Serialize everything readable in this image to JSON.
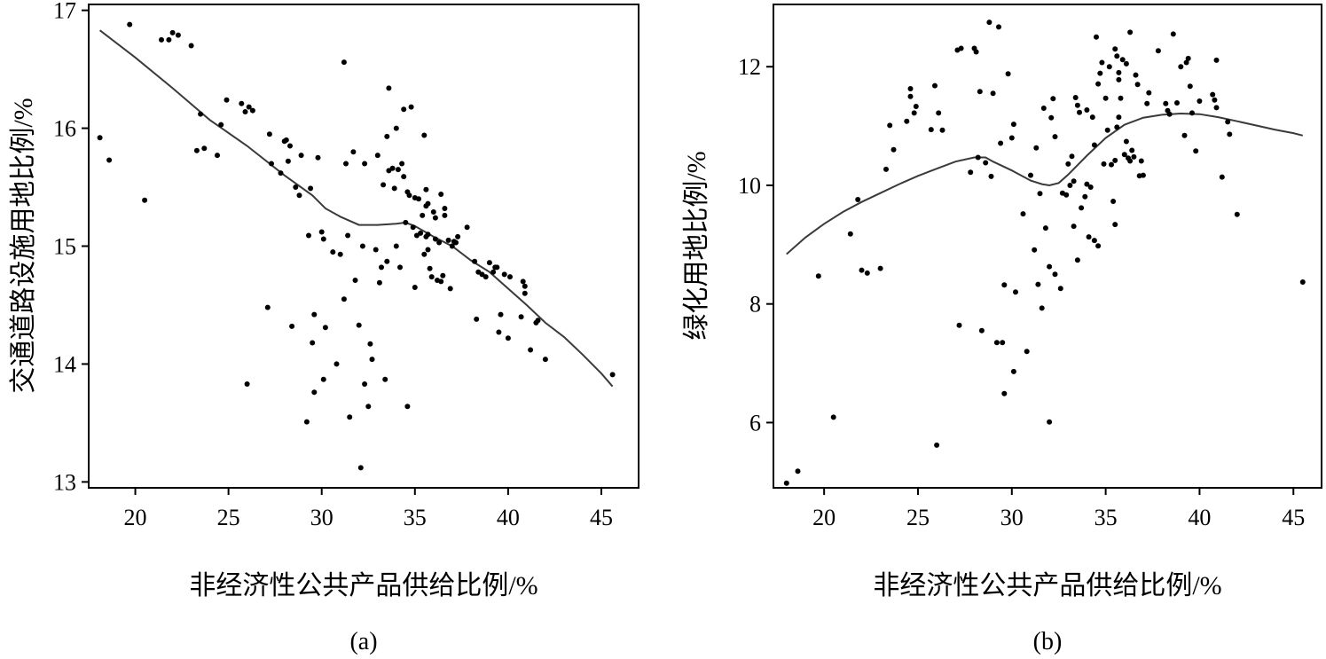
{
  "chart_data": [
    {
      "type": "scatter",
      "panel_label": "(a)",
      "xlabel": "非经济性公共产品供给比例/%",
      "ylabel": "交通道路设施用地比例/%",
      "xlim": [
        17.5,
        47
      ],
      "ylim": [
        12.95,
        17.05
      ],
      "xticks": [
        20,
        25,
        30,
        35,
        40,
        45
      ],
      "yticks": [
        13,
        14,
        15,
        16,
        17
      ],
      "grid": false,
      "legend": "none",
      "points": [
        [
          18.1,
          15.92
        ],
        [
          18.6,
          15.73
        ],
        [
          19.7,
          16.88
        ],
        [
          20.5,
          15.39
        ],
        [
          21.4,
          16.75
        ],
        [
          21.8,
          16.75
        ],
        [
          22.0,
          16.81
        ],
        [
          22.3,
          16.79
        ],
        [
          23.0,
          16.7
        ],
        [
          23.3,
          15.81
        ],
        [
          23.5,
          16.12
        ],
        [
          23.7,
          15.83
        ],
        [
          24.4,
          15.77
        ],
        [
          24.6,
          16.03
        ],
        [
          24.9,
          16.24
        ],
        [
          25.7,
          16.21
        ],
        [
          25.9,
          16.14
        ],
        [
          26.1,
          16.18
        ],
        [
          26.3,
          16.15
        ],
        [
          26.0,
          13.83
        ],
        [
          27.1,
          14.48
        ],
        [
          27.2,
          15.95
        ],
        [
          27.3,
          15.7
        ],
        [
          27.8,
          15.62
        ],
        [
          28.0,
          15.89
        ],
        [
          28.1,
          15.9
        ],
        [
          28.2,
          15.72
        ],
        [
          28.3,
          15.85
        ],
        [
          28.4,
          14.32
        ],
        [
          28.6,
          15.5
        ],
        [
          28.9,
          15.77
        ],
        [
          28.8,
          15.43
        ],
        [
          29.2,
          13.51
        ],
        [
          29.3,
          15.09
        ],
        [
          29.4,
          15.49
        ],
        [
          29.5,
          14.18
        ],
        [
          29.6,
          14.42
        ],
        [
          29.6,
          13.76
        ],
        [
          29.8,
          15.75
        ],
        [
          30.0,
          15.12
        ],
        [
          30.1,
          15.06
        ],
        [
          30.1,
          13.87
        ],
        [
          30.2,
          14.31
        ],
        [
          30.6,
          14.95
        ],
        [
          30.8,
          14.0
        ],
        [
          31.0,
          14.93
        ],
        [
          31.2,
          14.55
        ],
        [
          31.2,
          16.56
        ],
        [
          31.3,
          15.7
        ],
        [
          31.4,
          15.09
        ],
        [
          31.5,
          13.55
        ],
        [
          31.7,
          15.8
        ],
        [
          31.8,
          14.71
        ],
        [
          32.0,
          14.33
        ],
        [
          32.1,
          13.12
        ],
        [
          32.2,
          15.0
        ],
        [
          32.3,
          15.7
        ],
        [
          32.3,
          13.83
        ],
        [
          32.5,
          13.64
        ],
        [
          32.6,
          14.17
        ],
        [
          32.7,
          14.04
        ],
        [
          32.9,
          14.97
        ],
        [
          33.0,
          15.77
        ],
        [
          33.1,
          14.69
        ],
        [
          33.2,
          14.82
        ],
        [
          33.3,
          15.52
        ],
        [
          33.4,
          13.87
        ],
        [
          33.5,
          14.87
        ],
        [
          33.5,
          15.93
        ],
        [
          33.6,
          16.34
        ],
        [
          33.6,
          15.64
        ],
        [
          33.8,
          15.66
        ],
        [
          33.9,
          15.49
        ],
        [
          34.0,
          15.0
        ],
        [
          34.0,
          16.0
        ],
        [
          34.1,
          15.65
        ],
        [
          34.2,
          14.82
        ],
        [
          34.3,
          15.7
        ],
        [
          34.4,
          16.16
        ],
        [
          34.4,
          15.59
        ],
        [
          34.5,
          15.2
        ],
        [
          34.6,
          13.64
        ],
        [
          34.6,
          15.46
        ],
        [
          34.7,
          15.43
        ],
        [
          34.8,
          16.18
        ],
        [
          34.9,
          15.16
        ],
        [
          35.0,
          14.65
        ],
        [
          35.0,
          15.41
        ],
        [
          35.1,
          15.09
        ],
        [
          35.2,
          15.4
        ],
        [
          35.3,
          15.11
        ],
        [
          35.4,
          15.26
        ],
        [
          35.5,
          14.93
        ],
        [
          35.5,
          15.94
        ],
        [
          35.6,
          15.08
        ],
        [
          35.6,
          15.34
        ],
        [
          35.6,
          15.48
        ],
        [
          35.7,
          15.36
        ],
        [
          35.7,
          14.97
        ],
        [
          35.7,
          15.1
        ],
        [
          35.8,
          14.81
        ],
        [
          35.9,
          14.74
        ],
        [
          36.0,
          15.29
        ],
        [
          36.1,
          15.06
        ],
        [
          36.1,
          15.24
        ],
        [
          36.2,
          14.71
        ],
        [
          36.3,
          15.03
        ],
        [
          36.4,
          15.44
        ],
        [
          36.4,
          14.7
        ],
        [
          36.5,
          14.75
        ],
        [
          36.6,
          15.32
        ],
        [
          36.6,
          15.26
        ],
        [
          36.8,
          15.05
        ],
        [
          36.9,
          14.64
        ],
        [
          37.0,
          15.0
        ],
        [
          37.1,
          15.04
        ],
        [
          37.2,
          15.03
        ],
        [
          37.3,
          15.08
        ],
        [
          37.8,
          15.16
        ],
        [
          38.2,
          14.87
        ],
        [
          38.3,
          14.38
        ],
        [
          38.4,
          14.78
        ],
        [
          38.6,
          14.76
        ],
        [
          38.8,
          14.74
        ],
        [
          39.0,
          14.86
        ],
        [
          39.2,
          14.78
        ],
        [
          39.3,
          14.82
        ],
        [
          39.4,
          14.82
        ],
        [
          39.5,
          14.27
        ],
        [
          39.6,
          14.42
        ],
        [
          39.8,
          14.76
        ],
        [
          40.0,
          14.22
        ],
        [
          40.1,
          14.74
        ],
        [
          40.7,
          14.4
        ],
        [
          40.8,
          14.7
        ],
        [
          40.9,
          14.66
        ],
        [
          40.9,
          14.6
        ],
        [
          41.2,
          14.12
        ],
        [
          41.5,
          14.35
        ],
        [
          41.6,
          14.37
        ],
        [
          42.0,
          14.04
        ],
        [
          45.6,
          13.91
        ]
      ],
      "fit_line": [
        [
          18.1,
          16.83
        ],
        [
          20,
          16.6
        ],
        [
          22,
          16.34
        ],
        [
          24,
          16.07
        ],
        [
          26,
          15.85
        ],
        [
          28,
          15.6
        ],
        [
          29.5,
          15.43
        ],
        [
          30.2,
          15.32
        ],
        [
          31,
          15.25
        ],
        [
          32,
          15.18
        ],
        [
          33,
          15.18
        ],
        [
          34,
          15.19
        ],
        [
          34.5,
          15.2
        ],
        [
          35,
          15.17
        ],
        [
          36,
          15.08
        ],
        [
          37,
          15.0
        ],
        [
          38,
          14.88
        ],
        [
          39,
          14.78
        ],
        [
          40,
          14.64
        ],
        [
          41,
          14.5
        ],
        [
          42,
          14.35
        ],
        [
          43,
          14.23
        ],
        [
          44,
          14.08
        ],
        [
          45,
          13.92
        ],
        [
          45.6,
          13.81
        ]
      ]
    },
    {
      "type": "scatter",
      "panel_label": "(b)",
      "xlabel": "非经济性公共产品供给比例/%",
      "ylabel": "绿化用地比例/%",
      "xlim": [
        17.3,
        46.5
      ],
      "ylim": [
        4.9,
        13.05
      ],
      "xticks": [
        20,
        25,
        30,
        35,
        40,
        45
      ],
      "yticks": [
        6,
        8,
        10,
        12
      ],
      "grid": false,
      "legend": "none",
      "points": [
        [
          18.0,
          4.98
        ],
        [
          18.6,
          5.18
        ],
        [
          19.7,
          8.47
        ],
        [
          20.5,
          6.09
        ],
        [
          21.4,
          9.18
        ],
        [
          21.8,
          9.76
        ],
        [
          22.0,
          8.57
        ],
        [
          22.3,
          8.52
        ],
        [
          23.0,
          8.6
        ],
        [
          23.3,
          10.27
        ],
        [
          23.5,
          11.01
        ],
        [
          23.7,
          10.6
        ],
        [
          24.4,
          11.08
        ],
        [
          24.6,
          11.63
        ],
        [
          24.6,
          11.5
        ],
        [
          24.8,
          11.22
        ],
        [
          24.9,
          11.33
        ],
        [
          25.7,
          10.94
        ],
        [
          25.9,
          11.68
        ],
        [
          26.0,
          5.62
        ],
        [
          26.1,
          11.22
        ],
        [
          26.3,
          10.93
        ],
        [
          27.1,
          12.28
        ],
        [
          27.2,
          7.64
        ],
        [
          27.3,
          12.31
        ],
        [
          27.8,
          10.22
        ],
        [
          28.0,
          12.31
        ],
        [
          28.1,
          12.25
        ],
        [
          28.2,
          10.47
        ],
        [
          28.3,
          11.58
        ],
        [
          28.4,
          7.55
        ],
        [
          28.6,
          10.38
        ],
        [
          28.8,
          12.75
        ],
        [
          28.9,
          10.15
        ],
        [
          29.0,
          11.55
        ],
        [
          29.2,
          7.35
        ],
        [
          29.3,
          12.67
        ],
        [
          29.4,
          10.71
        ],
        [
          29.5,
          7.35
        ],
        [
          29.6,
          8.32
        ],
        [
          29.6,
          6.49
        ],
        [
          29.8,
          11.88
        ],
        [
          30.0,
          10.8
        ],
        [
          30.1,
          11.03
        ],
        [
          30.1,
          6.86
        ],
        [
          30.2,
          8.2
        ],
        [
          30.6,
          9.52
        ],
        [
          30.8,
          7.2
        ],
        [
          31.0,
          10.17
        ],
        [
          31.2,
          8.91
        ],
        [
          31.3,
          10.63
        ],
        [
          31.4,
          8.33
        ],
        [
          31.5,
          9.86
        ],
        [
          31.6,
          7.93
        ],
        [
          31.7,
          11.3
        ],
        [
          31.8,
          9.28
        ],
        [
          32.0,
          6.01
        ],
        [
          32.0,
          8.63
        ],
        [
          32.1,
          11.14
        ],
        [
          32.2,
          11.46
        ],
        [
          32.3,
          8.5
        ],
        [
          32.3,
          10.82
        ],
        [
          32.6,
          8.26
        ],
        [
          32.7,
          9.87
        ],
        [
          32.9,
          9.84
        ],
        [
          33.0,
          10.36
        ],
        [
          33.1,
          10.0
        ],
        [
          33.2,
          10.49
        ],
        [
          33.3,
          9.31
        ],
        [
          33.3,
          10.07
        ],
        [
          33.4,
          11.48
        ],
        [
          33.5,
          11.35
        ],
        [
          33.5,
          8.74
        ],
        [
          33.6,
          11.23
        ],
        [
          33.7,
          9.62
        ],
        [
          33.9,
          9.81
        ],
        [
          34.0,
          10.02
        ],
        [
          34.0,
          11.27
        ],
        [
          34.1,
          9.13
        ],
        [
          34.2,
          9.97
        ],
        [
          34.3,
          11.15
        ],
        [
          34.4,
          10.68
        ],
        [
          34.4,
          9.07
        ],
        [
          34.5,
          12.5
        ],
        [
          34.6,
          8.98
        ],
        [
          34.6,
          11.71
        ],
        [
          34.7,
          11.89
        ],
        [
          34.8,
          12.07
        ],
        [
          34.9,
          10.36
        ],
        [
          35.0,
          11.47
        ],
        [
          35.1,
          10.93
        ],
        [
          35.2,
          12.0
        ],
        [
          35.3,
          10.35
        ],
        [
          35.4,
          9.73
        ],
        [
          35.5,
          9.34
        ],
        [
          35.5,
          10.42
        ],
        [
          35.5,
          12.3
        ],
        [
          35.6,
          12.18
        ],
        [
          35.6,
          10.98
        ],
        [
          35.7,
          11.78
        ],
        [
          35.7,
          11.15
        ],
        [
          35.7,
          11.9
        ],
        [
          35.8,
          11.47
        ],
        [
          35.9,
          12.12
        ],
        [
          36.0,
          10.52
        ],
        [
          36.1,
          10.74
        ],
        [
          36.1,
          12.05
        ],
        [
          36.2,
          10.46
        ],
        [
          36.3,
          10.41
        ],
        [
          36.3,
          12.58
        ],
        [
          36.4,
          10.59
        ],
        [
          36.5,
          10.48
        ],
        [
          36.6,
          11.86
        ],
        [
          36.7,
          11.7
        ],
        [
          36.8,
          10.16
        ],
        [
          36.9,
          10.41
        ],
        [
          37.0,
          10.17
        ],
        [
          37.2,
          11.38
        ],
        [
          37.3,
          11.56
        ],
        [
          37.8,
          12.27
        ],
        [
          38.2,
          11.38
        ],
        [
          38.3,
          11.26
        ],
        [
          38.4,
          11.2
        ],
        [
          38.6,
          12.55
        ],
        [
          38.8,
          11.39
        ],
        [
          39.0,
          12.0
        ],
        [
          39.2,
          10.84
        ],
        [
          39.3,
          12.07
        ],
        [
          39.4,
          12.14
        ],
        [
          39.5,
          11.67
        ],
        [
          39.6,
          11.22
        ],
        [
          39.8,
          10.58
        ],
        [
          40.0,
          11.42
        ],
        [
          40.7,
          11.53
        ],
        [
          40.8,
          11.44
        ],
        [
          40.9,
          12.11
        ],
        [
          40.9,
          11.31
        ],
        [
          41.2,
          10.14
        ],
        [
          41.5,
          11.07
        ],
        [
          41.6,
          10.86
        ],
        [
          42.0,
          9.51
        ],
        [
          45.5,
          8.37
        ]
      ],
      "fit_line": [
        [
          18.0,
          8.84
        ],
        [
          19,
          9.12
        ],
        [
          20,
          9.35
        ],
        [
          21,
          9.55
        ],
        [
          22,
          9.72
        ],
        [
          23,
          9.87
        ],
        [
          24,
          10.02
        ],
        [
          25,
          10.16
        ],
        [
          26,
          10.28
        ],
        [
          27,
          10.4
        ],
        [
          28,
          10.47
        ],
        [
          28.6,
          10.47
        ],
        [
          29,
          10.4
        ],
        [
          30,
          10.25
        ],
        [
          31,
          10.08
        ],
        [
          31.6,
          10.02
        ],
        [
          32,
          10.0
        ],
        [
          32.5,
          10.04
        ],
        [
          33,
          10.18
        ],
        [
          34,
          10.5
        ],
        [
          35,
          10.8
        ],
        [
          36,
          11.02
        ],
        [
          37,
          11.14
        ],
        [
          38,
          11.19
        ],
        [
          39,
          11.21
        ],
        [
          40,
          11.2
        ],
        [
          41,
          11.15
        ],
        [
          42,
          11.08
        ],
        [
          43,
          11.01
        ],
        [
          44,
          10.94
        ],
        [
          45,
          10.88
        ],
        [
          45.5,
          10.84
        ]
      ]
    }
  ]
}
